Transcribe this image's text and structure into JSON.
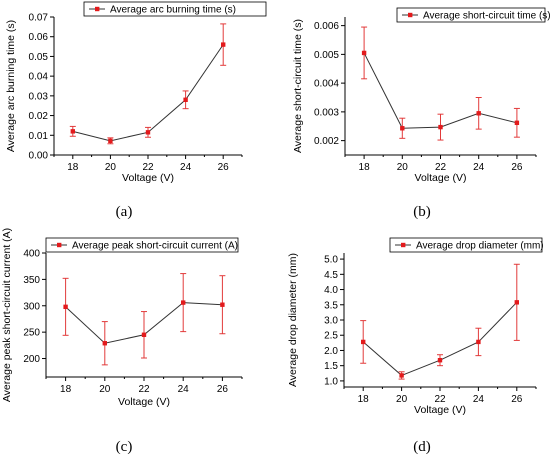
{
  "colors": {
    "line": "#333333",
    "marker": "#e31a1c",
    "errorbar": "#e23a3a"
  },
  "chart_data": [
    {
      "type": "line",
      "panel_label": "(a)",
      "xlabel": "Voltage (V)",
      "ylabel": "Average arc burning time (s)",
      "x": [
        18,
        20,
        22,
        24,
        26
      ],
      "xlim": [
        17,
        27
      ],
      "ylim": [
        0.0,
        0.07
      ],
      "xticks": [
        "18",
        "20",
        "22",
        "24",
        "26"
      ],
      "yticks": [
        "0.00",
        "0.01",
        "0.02",
        "0.03",
        "0.04",
        "0.05",
        "0.06",
        "0.07"
      ],
      "legend_position": "top-right",
      "series": [
        {
          "name": "Average arc burning time (s)",
          "values": [
            0.012,
            0.0072,
            0.0115,
            0.028,
            0.056
          ],
          "errors": [
            0.0025,
            0.0015,
            0.0025,
            0.0045,
            0.0105
          ]
        }
      ]
    },
    {
      "type": "line",
      "panel_label": "(b)",
      "xlabel": "Voltage (V)",
      "ylabel": "Average short-circuit time (s)",
      "x": [
        18,
        20,
        22,
        24,
        26
      ],
      "xlim": [
        17,
        27
      ],
      "ylim": [
        0.0015,
        0.0063
      ],
      "xticks": [
        "18",
        "20",
        "22",
        "24",
        "26"
      ],
      "yticks": [
        "0.002",
        "0.003",
        "0.004",
        "0.005",
        "0.006"
      ],
      "legend_position": "top-right",
      "series": [
        {
          "name": "Average short-circuit time (s)",
          "values": [
            0.00505,
            0.00243,
            0.00247,
            0.00295,
            0.00262
          ],
          "errors": [
            0.0009,
            0.00035,
            0.00045,
            0.00055,
            0.0005
          ]
        }
      ]
    },
    {
      "type": "line",
      "panel_label": "(c)",
      "xlabel": "Voltage (V)",
      "ylabel": "Average peak short-circuit current (A)",
      "x": [
        18,
        20,
        22,
        24,
        26
      ],
      "xlim": [
        17,
        27
      ],
      "ylim": [
        165,
        400
      ],
      "xticks": [
        "18",
        "20",
        "22",
        "24",
        "26"
      ],
      "yticks": [
        "200",
        "250",
        "300",
        "350",
        "400"
      ],
      "legend_position": "top-right",
      "series": [
        {
          "name": "Average peak short-circuit current (A)",
          "values": [
            298,
            229,
            245,
            306,
            302
          ],
          "errors": [
            54,
            41,
            44,
            55,
            55
          ]
        }
      ]
    },
    {
      "type": "line",
      "panel_label": "(d)",
      "xlabel": "Voltage (V)",
      "ylabel": "Average drop diameter (mm)",
      "x": [
        18,
        20,
        22,
        24,
        26
      ],
      "xlim": [
        17,
        27
      ],
      "ylim": [
        0.8,
        5.2
      ],
      "xticks": [
        "18",
        "20",
        "22",
        "24",
        "26"
      ],
      "yticks": [
        "1.0",
        "1.5",
        "2.0",
        "2.5",
        "3.0",
        "3.5",
        "4.0",
        "4.5",
        "5.0"
      ],
      "legend_position": "top-right",
      "series": [
        {
          "name": "Average drop diameter (mm)",
          "values": [
            2.28,
            1.18,
            1.68,
            2.28,
            3.58
          ],
          "errors": [
            0.7,
            0.12,
            0.18,
            0.45,
            1.25
          ]
        }
      ]
    }
  ]
}
